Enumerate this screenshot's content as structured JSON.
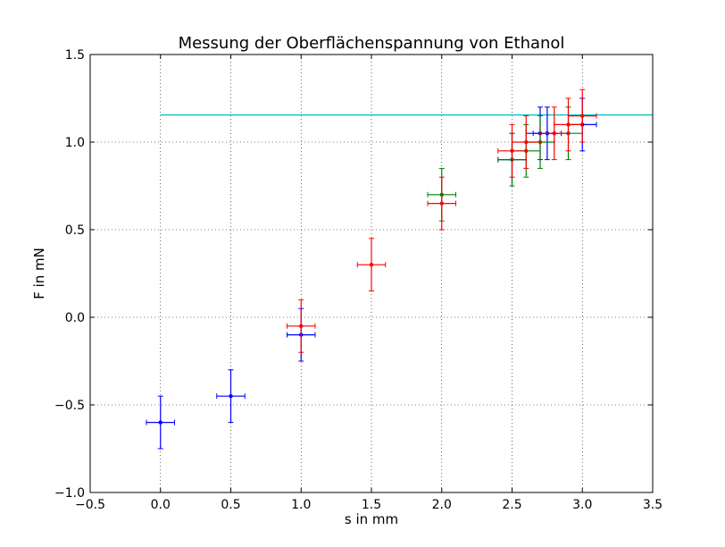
{
  "chart_data": {
    "type": "scatter",
    "title": "Messung der Oberflächenspannung von Ethanol",
    "xlabel": "s in mm",
    "ylabel": "F in mN",
    "xlim": [
      -0.5,
      3.5
    ],
    "ylim": [
      -1.0,
      1.5
    ],
    "xticks": [
      -0.5,
      0.0,
      0.5,
      1.0,
      1.5,
      2.0,
      2.5,
      3.0,
      3.5
    ],
    "xtick_labels": [
      "−0.5",
      "0.0",
      "0.5",
      "1.0",
      "1.5",
      "2.0",
      "2.5",
      "3.0",
      "3.5"
    ],
    "yticks": [
      -1.0,
      -0.5,
      0.0,
      0.5,
      1.0,
      1.5
    ],
    "ytick_labels": [
      "−1.0",
      "−0.5",
      "0.0",
      "0.5",
      "1.0",
      "1.5"
    ],
    "grid": true,
    "error_bars": {
      "x": 0.1,
      "y": 0.15
    },
    "series": [
      {
        "color": "#0000ff",
        "x": [
          0.0,
          0.5,
          1.0,
          2.5,
          2.7,
          2.75,
          3.0
        ],
        "y": [
          -0.6,
          -0.45,
          -0.1,
          0.9,
          1.05,
          1.05,
          1.1
        ]
      },
      {
        "color": "#008000",
        "x": [
          2.0,
          2.5,
          2.6,
          2.7,
          2.9
        ],
        "y": [
          0.7,
          0.9,
          0.95,
          1.0,
          1.05
        ]
      },
      {
        "color": "#ff0000",
        "x": [
          1.0,
          1.5,
          2.0,
          2.5,
          2.6,
          2.8,
          2.9,
          3.0
        ],
        "y": [
          -0.05,
          0.3,
          0.65,
          0.95,
          1.0,
          1.05,
          1.1,
          1.15
        ]
      }
    ],
    "reference_line": {
      "y": 1.155,
      "color": "#00bfbf"
    }
  }
}
